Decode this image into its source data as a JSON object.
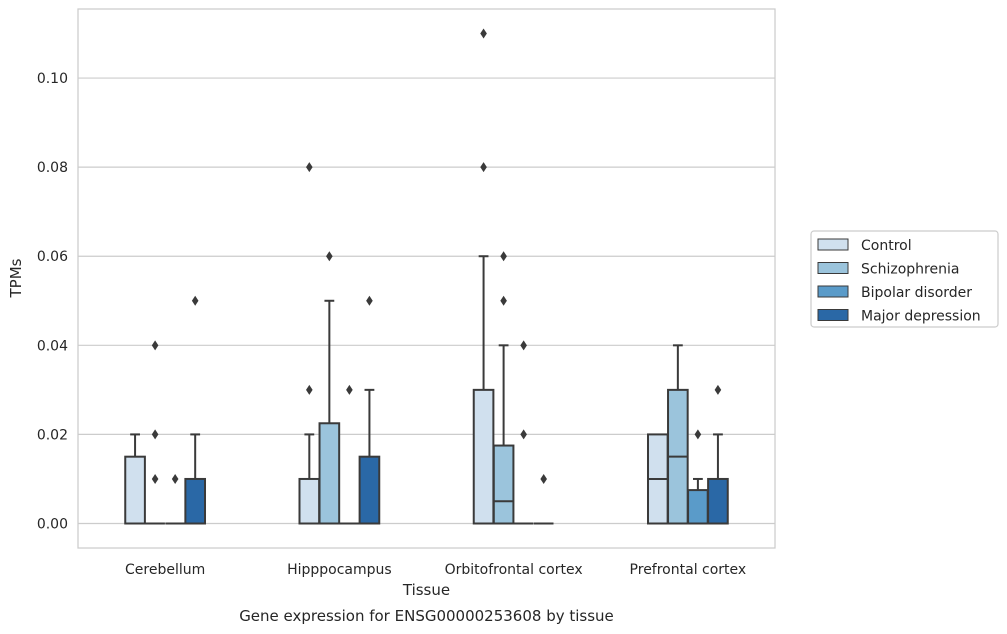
{
  "chart_data": {
    "type": "box",
    "title": "Gene expression for ENSG00000253608 by tissue",
    "xlabel": "Tissue",
    "ylabel": "TPMs",
    "ylim": [
      -0.0055,
      0.1155
    ],
    "yticks": [
      0.0,
      0.02,
      0.04,
      0.06,
      0.08,
      0.1
    ],
    "ytick_labels": [
      "0.00",
      "0.02",
      "0.04",
      "0.06",
      "0.08",
      "0.10"
    ],
    "grid": "horizontal",
    "legend_position": "right",
    "categories": [
      "Cerebellum",
      "Hipppocampus",
      "Orbitofrontal cortex",
      "Prefrontal cortex"
    ],
    "series": [
      {
        "name": "Control",
        "color": "#d0e0ee",
        "boxes": [
          {
            "q1": 0.0,
            "median": 0.0,
            "q3": 0.015,
            "whisker_low": 0.0,
            "whisker_high": 0.02,
            "outliers": []
          },
          {
            "q1": 0.0,
            "median": 0.0,
            "q3": 0.01,
            "whisker_low": 0.0,
            "whisker_high": 0.02,
            "outliers": [
              0.03,
              0.08
            ]
          },
          {
            "q1": 0.0,
            "median": 0.0,
            "q3": 0.03,
            "whisker_low": 0.0,
            "whisker_high": 0.06,
            "outliers": [
              0.08,
              0.11
            ]
          },
          {
            "q1": 0.0,
            "median": 0.01,
            "q3": 0.02,
            "whisker_low": 0.0,
            "whisker_high": 0.02,
            "outliers": []
          }
        ]
      },
      {
        "name": "Schizophrenia",
        "color": "#9bc4dc",
        "boxes": [
          {
            "q1": 0.0,
            "median": 0.0,
            "q3": 0.0,
            "whisker_low": 0.0,
            "whisker_high": 0.0,
            "outliers": [
              0.01,
              0.02,
              0.04
            ]
          },
          {
            "q1": 0.0,
            "median": 0.0,
            "q3": 0.0225,
            "whisker_low": 0.0,
            "whisker_high": 0.05,
            "outliers": [
              0.06
            ]
          },
          {
            "q1": 0.0,
            "median": 0.005,
            "q3": 0.0175,
            "whisker_low": 0.0,
            "whisker_high": 0.04,
            "outliers": [
              0.05,
              0.06
            ]
          },
          {
            "q1": 0.0,
            "median": 0.015,
            "q3": 0.03,
            "whisker_low": 0.0,
            "whisker_high": 0.04,
            "outliers": []
          }
        ]
      },
      {
        "name": "Bipolar disorder",
        "color": "#5a9bc9",
        "boxes": [
          {
            "q1": 0.0,
            "median": 0.0,
            "q3": 0.0,
            "whisker_low": 0.0,
            "whisker_high": 0.0,
            "outliers": [
              0.01
            ]
          },
          {
            "q1": 0.0,
            "median": 0.0,
            "q3": 0.0,
            "whisker_low": 0.0,
            "whisker_high": 0.0,
            "outliers": [
              0.03
            ]
          },
          {
            "q1": 0.0,
            "median": 0.0,
            "q3": 0.0,
            "whisker_low": 0.0,
            "whisker_high": 0.0,
            "outliers": [
              0.02,
              0.04
            ]
          },
          {
            "q1": 0.0,
            "median": 0.0,
            "q3": 0.0075,
            "whisker_low": 0.0,
            "whisker_high": 0.01,
            "outliers": [
              0.02
            ]
          }
        ]
      },
      {
        "name": "Major depression",
        "color": "#2a68a6",
        "boxes": [
          {
            "q1": 0.0,
            "median": 0.0,
            "q3": 0.01,
            "whisker_low": 0.0,
            "whisker_high": 0.02,
            "outliers": [
              0.05
            ]
          },
          {
            "q1": 0.0,
            "median": 0.0,
            "q3": 0.015,
            "whisker_low": 0.0,
            "whisker_high": 0.03,
            "outliers": [
              0.05
            ]
          },
          {
            "q1": 0.0,
            "median": 0.0,
            "q3": 0.0,
            "whisker_low": 0.0,
            "whisker_high": 0.0,
            "outliers": [
              0.01
            ]
          },
          {
            "q1": 0.0,
            "median": 0.0,
            "q3": 0.01,
            "whisker_low": 0.0,
            "whisker_high": 0.02,
            "outliers": [
              0.03
            ]
          }
        ]
      }
    ]
  }
}
